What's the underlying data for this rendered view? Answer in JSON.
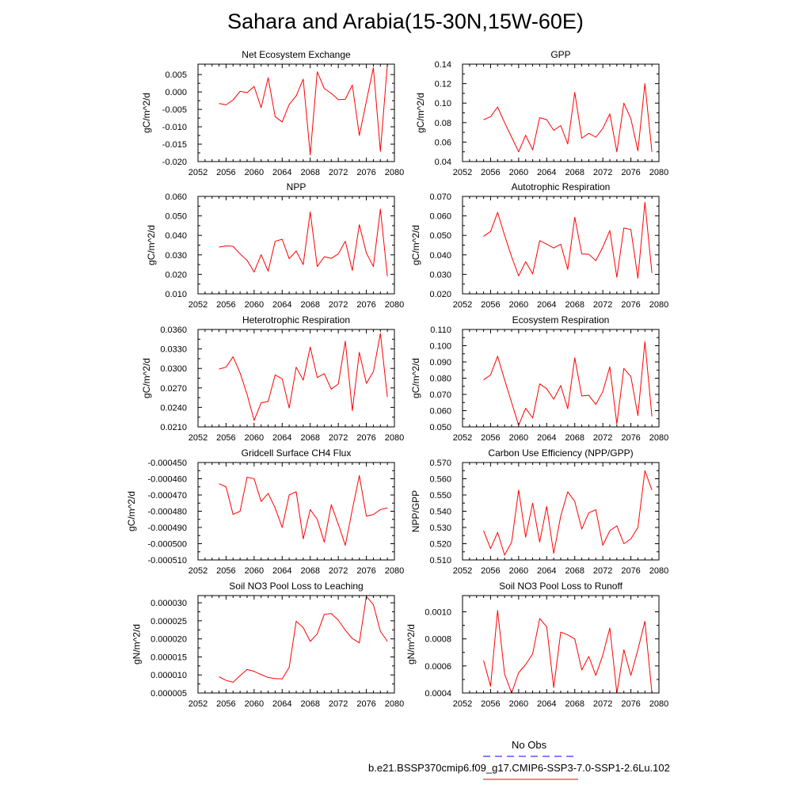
{
  "title": "Sahara and Arabia(15-30N,15W-60E)",
  "colors": {
    "model_line": "#ff0000",
    "obs_line": "#0000ff",
    "axis": "#000000"
  },
  "legend": {
    "obs_label": "No Obs",
    "model_label": "b.e21.BSSP370cmip6.f09_g17.CMIP6-SSP3-7.0-SSP1-2.6Lu.102"
  },
  "chart_data": [
    {
      "type": "line",
      "title": "Net Ecosystem Exchange",
      "ylabel": "gC/m^2/d",
      "xlim": [
        2052,
        2080
      ],
      "xticks": [
        2052,
        2056,
        2060,
        2064,
        2068,
        2072,
        2076,
        2080
      ],
      "ylim": [
        -0.02,
        0.008
      ],
      "yticks": [
        "0.005",
        "0.000",
        "-0.005",
        "-0.010",
        "-0.015",
        "-0.020"
      ],
      "ytick_values": [
        0.005,
        0.0,
        -0.005,
        -0.01,
        -0.015,
        -0.02
      ],
      "x": [
        2055,
        2056,
        2057,
        2058,
        2059,
        2060,
        2061,
        2062,
        2063,
        2064,
        2065,
        2066,
        2067,
        2068,
        2069,
        2070,
        2071,
        2072,
        2073,
        2074,
        2075,
        2076,
        2077,
        2078,
        2079
      ],
      "series": [
        {
          "values": [
            -0.0033,
            -0.0037,
            -0.0023,
            0.0002,
            -0.0002,
            0.0016,
            -0.0045,
            0.0041,
            -0.0071,
            -0.0086,
            -0.0036,
            -0.0011,
            0.0037,
            -0.0181,
            0.0058,
            0.001,
            -0.0004,
            -0.0022,
            -0.0021,
            0.002,
            -0.0125,
            -0.0027,
            0.007,
            -0.0171,
            0.008
          ]
        }
      ]
    },
    {
      "type": "line",
      "title": "GPP",
      "ylabel": "gC/m^2/d",
      "xlim": [
        2052,
        2080
      ],
      "xticks": [
        2052,
        2056,
        2060,
        2064,
        2068,
        2072,
        2076,
        2080
      ],
      "ylim": [
        0.04,
        0.14
      ],
      "yticks": [
        "0.14",
        "0.12",
        "0.10",
        "0.08",
        "0.06",
        "0.04"
      ],
      "ytick_values": [
        0.14,
        0.12,
        0.1,
        0.08,
        0.06,
        0.04
      ],
      "x": [
        2055,
        2056,
        2057,
        2058,
        2059,
        2060,
        2061,
        2062,
        2063,
        2064,
        2065,
        2066,
        2067,
        2068,
        2069,
        2070,
        2071,
        2072,
        2073,
        2074,
        2075,
        2076,
        2077,
        2078,
        2079
      ],
      "series": [
        {
          "values": [
            0.083,
            0.086,
            0.096,
            0.08,
            0.065,
            0.05,
            0.067,
            0.052,
            0.085,
            0.083,
            0.072,
            0.077,
            0.058,
            0.111,
            0.064,
            0.069,
            0.065,
            0.074,
            0.089,
            0.05,
            0.1,
            0.084,
            0.051,
            0.12,
            0.05
          ]
        }
      ]
    },
    {
      "type": "line",
      "title": "NPP",
      "ylabel": "gC/m^2/d",
      "xlim": [
        2052,
        2080
      ],
      "xticks": [
        2052,
        2056,
        2060,
        2064,
        2068,
        2072,
        2076,
        2080
      ],
      "ylim": [
        0.01,
        0.06
      ],
      "yticks": [
        "0.060",
        "0.050",
        "0.040",
        "0.030",
        "0.020",
        "0.010"
      ],
      "ytick_values": [
        0.06,
        0.05,
        0.04,
        0.03,
        0.02,
        0.01
      ],
      "x": [
        2055,
        2056,
        2057,
        2058,
        2059,
        2060,
        2061,
        2062,
        2063,
        2064,
        2065,
        2066,
        2067,
        2068,
        2069,
        2070,
        2071,
        2072,
        2073,
        2074,
        2075,
        2076,
        2077,
        2078,
        2079
      ],
      "series": [
        {
          "values": [
            0.034,
            0.0346,
            0.0344,
            0.0305,
            0.0272,
            0.0212,
            0.0301,
            0.0216,
            0.037,
            0.038,
            0.028,
            0.032,
            0.025,
            0.052,
            0.024,
            0.029,
            0.0282,
            0.0305,
            0.037,
            0.022,
            0.0455,
            0.031,
            0.024,
            0.0535,
            0.019
          ]
        }
      ]
    },
    {
      "type": "line",
      "title": "Autotrophic Respiration",
      "ylabel": "gC/m^2/d",
      "xlim": [
        2052,
        2080
      ],
      "xticks": [
        2052,
        2056,
        2060,
        2064,
        2068,
        2072,
        2076,
        2080
      ],
      "ylim": [
        0.02,
        0.07
      ],
      "yticks": [
        "0.070",
        "0.060",
        "0.050",
        "0.040",
        "0.030",
        "0.020"
      ],
      "ytick_values": [
        0.07,
        0.06,
        0.05,
        0.04,
        0.03,
        0.02
      ],
      "x": [
        2055,
        2056,
        2057,
        2058,
        2059,
        2060,
        2061,
        2062,
        2063,
        2064,
        2065,
        2066,
        2067,
        2068,
        2069,
        2070,
        2071,
        2072,
        2073,
        2074,
        2075,
        2076,
        2077,
        2078,
        2079
      ],
      "series": [
        {
          "values": [
            0.0495,
            0.052,
            0.0618,
            0.05,
            0.039,
            0.0292,
            0.0365,
            0.0302,
            0.0473,
            0.0455,
            0.0435,
            0.0455,
            0.0325,
            0.0593,
            0.0405,
            0.0403,
            0.037,
            0.044,
            0.0525,
            0.0285,
            0.0538,
            0.053,
            0.028,
            0.067,
            0.0307
          ]
        }
      ]
    },
    {
      "type": "line",
      "title": "Heterotrophic Respiration",
      "ylabel": "gC/m^2/d",
      "xlim": [
        2052,
        2080
      ],
      "xticks": [
        2052,
        2056,
        2060,
        2064,
        2068,
        2072,
        2076,
        2080
      ],
      "ylim": [
        0.021,
        0.036
      ],
      "yticks": [
        "0.0360",
        "0.0330",
        "0.0300",
        "0.0270",
        "0.0240",
        "0.0210"
      ],
      "ytick_values": [
        0.036,
        0.033,
        0.03,
        0.027,
        0.024,
        0.021
      ],
      "x": [
        2055,
        2056,
        2057,
        2058,
        2059,
        2060,
        2061,
        2062,
        2063,
        2064,
        2065,
        2066,
        2067,
        2068,
        2069,
        2070,
        2071,
        2072,
        2073,
        2074,
        2075,
        2076,
        2077,
        2078,
        2079
      ],
      "series": [
        {
          "values": [
            0.0299,
            0.0302,
            0.0318,
            0.0293,
            0.026,
            0.022,
            0.0247,
            0.0249,
            0.029,
            0.0284,
            0.0239,
            0.0302,
            0.0282,
            0.0333,
            0.0286,
            0.0292,
            0.0268,
            0.0276,
            0.0342,
            0.0235,
            0.0325,
            0.0277,
            0.0295,
            0.0354,
            0.0256
          ]
        }
      ]
    },
    {
      "type": "line",
      "title": "Ecosystem Respiration",
      "ylabel": "gC/m^2/d",
      "xlim": [
        2052,
        2080
      ],
      "xticks": [
        2052,
        2056,
        2060,
        2064,
        2068,
        2072,
        2076,
        2080
      ],
      "ylim": [
        0.05,
        0.11
      ],
      "yticks": [
        "0.110",
        "0.100",
        "0.090",
        "0.080",
        "0.070",
        "0.060",
        "0.050"
      ],
      "ytick_values": [
        0.11,
        0.1,
        0.09,
        0.08,
        0.07,
        0.06,
        0.05
      ],
      "x": [
        2055,
        2056,
        2057,
        2058,
        2059,
        2060,
        2061,
        2062,
        2063,
        2064,
        2065,
        2066,
        2067,
        2068,
        2069,
        2070,
        2071,
        2072,
        2073,
        2074,
        2075,
        2076,
        2077,
        2078,
        2079
      ],
      "series": [
        {
          "values": [
            0.079,
            0.082,
            0.0935,
            0.079,
            0.065,
            0.051,
            0.0615,
            0.0555,
            0.0765,
            0.0735,
            0.067,
            0.0755,
            0.0612,
            0.0925,
            0.069,
            0.0695,
            0.0638,
            0.0718,
            0.087,
            0.0518,
            0.086,
            0.081,
            0.057,
            0.1025,
            0.0565
          ]
        }
      ]
    },
    {
      "type": "line",
      "title": "Gridcell Surface CH4 Flux",
      "ylabel": "gC/m^2/d",
      "xlim": [
        2052,
        2080
      ],
      "xticks": [
        2052,
        2056,
        2060,
        2064,
        2068,
        2072,
        2076,
        2080
      ],
      "ylim": [
        -0.00051,
        -0.00045
      ],
      "yticks": [
        "-0.000450",
        "-0.000460",
        "-0.000470",
        "-0.000480",
        "-0.000490",
        "-0.000500",
        "-0.000510"
      ],
      "ytick_values": [
        -0.00045,
        -0.00046,
        -0.00047,
        -0.00048,
        -0.00049,
        -0.0005,
        -0.00051
      ],
      "x": [
        2055,
        2056,
        2057,
        2058,
        2059,
        2060,
        2061,
        2062,
        2063,
        2064,
        2065,
        2066,
        2067,
        2068,
        2069,
        2070,
        2071,
        2072,
        2073,
        2074,
        2075,
        2076,
        2077,
        2078,
        2079
      ],
      "series": [
        {
          "values": [
            -0.000463,
            -0.000465,
            -0.000482,
            -0.00048,
            -0.000459,
            -0.00046,
            -0.000474,
            -0.000469,
            -0.000478,
            -0.00049,
            -0.00047,
            -0.000468,
            -0.000497,
            -0.000479,
            -0.000485,
            -0.000499,
            -0.000476,
            -0.000488,
            -0.000501,
            -0.000479,
            -0.000458,
            -0.000483,
            -0.000482,
            -0.000479,
            -0.000478
          ]
        }
      ]
    },
    {
      "type": "line",
      "title": "Carbon Use Efficiency (NPP/GPP)",
      "ylabel": "NPP/GPP",
      "xlim": [
        2052,
        2080
      ],
      "xticks": [
        2052,
        2056,
        2060,
        2064,
        2068,
        2072,
        2076,
        2080
      ],
      "ylim": [
        0.51,
        0.57
      ],
      "yticks": [
        "0.570",
        "0.560",
        "0.550",
        "0.540",
        "0.530",
        "0.520",
        "0.510"
      ],
      "ytick_values": [
        0.57,
        0.56,
        0.55,
        0.54,
        0.53,
        0.52,
        0.51
      ],
      "x": [
        2055,
        2056,
        2057,
        2058,
        2059,
        2060,
        2061,
        2062,
        2063,
        2064,
        2065,
        2066,
        2067,
        2068,
        2069,
        2070,
        2071,
        2072,
        2073,
        2074,
        2075,
        2076,
        2077,
        2078,
        2079
      ],
      "series": [
        {
          "values": [
            0.528,
            0.517,
            0.527,
            0.513,
            0.521,
            0.553,
            0.524,
            0.545,
            0.521,
            0.543,
            0.514,
            0.537,
            0.552,
            0.546,
            0.529,
            0.539,
            0.541,
            0.519,
            0.528,
            0.531,
            0.52,
            0.523,
            0.53,
            0.565,
            0.553
          ]
        }
      ]
    },
    {
      "type": "line",
      "title": "Soil NO3 Pool Loss to Leaching",
      "ylabel": "gN/m^2/d",
      "xlim": [
        2052,
        2080
      ],
      "xticks": [
        2052,
        2056,
        2060,
        2064,
        2068,
        2072,
        2076,
        2080
      ],
      "ylim": [
        5e-06,
        3.2e-05
      ],
      "yticks": [
        "0.000030",
        "0.000025",
        "0.000020",
        "0.000015",
        "0.000010",
        "0.000005"
      ],
      "ytick_values": [
        3e-05,
        2.5e-05,
        2e-05,
        1.5e-05,
        1e-05,
        5e-06
      ],
      "x": [
        2055,
        2056,
        2057,
        2058,
        2059,
        2060,
        2061,
        2062,
        2063,
        2064,
        2065,
        2066,
        2067,
        2068,
        2069,
        2070,
        2071,
        2072,
        2073,
        2074,
        2075,
        2076,
        2077,
        2078,
        2079
      ],
      "series": [
        {
          "values": [
            9.5e-06,
            8.5e-06,
            8e-06,
            9.8e-06,
            1.15e-05,
            1.1e-05,
            1.01e-05,
            9.3e-06,
            9e-06,
            8.9e-06,
            1.21e-05,
            2.49e-05,
            2.31e-05,
            1.93e-05,
            2.14e-05,
            2.68e-05,
            2.7e-05,
            2.52e-05,
            2.24e-05,
            2.01e-05,
            1.89e-05,
            3.18e-05,
            2.95e-05,
            2.21e-05,
            1.93e-05
          ]
        }
      ]
    },
    {
      "type": "line",
      "title": "Soil NO3 Pool Loss to Runoff",
      "ylabel": "gN/m^2/d",
      "xlim": [
        2052,
        2080
      ],
      "xticks": [
        2052,
        2056,
        2060,
        2064,
        2068,
        2072,
        2076,
        2080
      ],
      "ylim": [
        0.0004,
        0.00112
      ],
      "yticks": [
        "0.0010",
        "0.0008",
        "0.0006",
        "0.0004"
      ],
      "ytick_values": [
        0.001,
        0.0008,
        0.0006,
        0.0004
      ],
      "x": [
        2055,
        2056,
        2057,
        2058,
        2059,
        2060,
        2061,
        2062,
        2063,
        2064,
        2065,
        2066,
        2067,
        2068,
        2069,
        2070,
        2071,
        2072,
        2073,
        2074,
        2075,
        2076,
        2077,
        2078,
        2079
      ],
      "series": [
        {
          "values": [
            0.00064,
            0.00045,
            0.00101,
            0.00054,
            0.0004,
            0.00055,
            0.00061,
            0.00069,
            0.00095,
            0.00089,
            0.00044,
            0.00085,
            0.00083,
            0.0008,
            0.00057,
            0.00067,
            0.00053,
            0.00068,
            0.00088,
            0.0004,
            0.00072,
            0.00053,
            0.00072,
            0.00093,
            0.0004
          ]
        }
      ]
    }
  ]
}
